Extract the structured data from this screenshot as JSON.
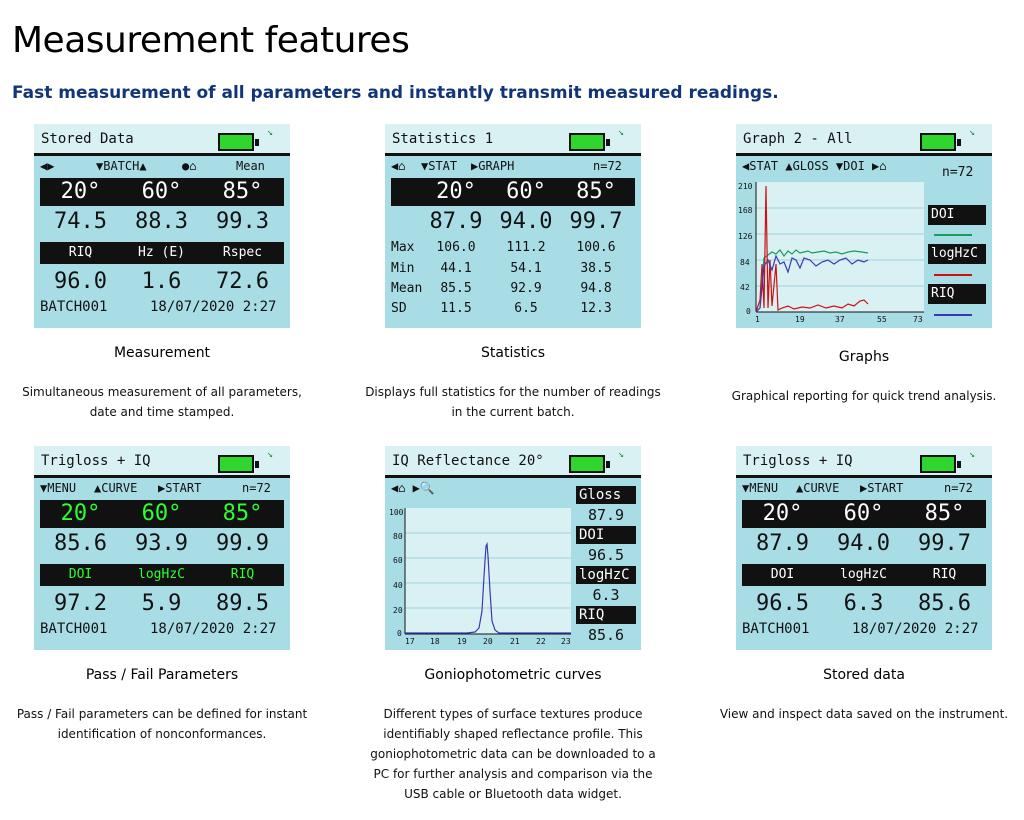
{
  "page": {
    "title": "Measurement features",
    "subtitle": "Fast measurement of all parameters and instantly transmit measured readings."
  },
  "icons": {
    "battery": "battery-icon",
    "signal": "signal-icon"
  },
  "colors": {
    "heading": "#12357a",
    "screen": "#a9dde6",
    "battery": "#2ed62e",
    "green": "#2eff2e"
  },
  "cards": [
    {
      "screen_title": "Stored Data",
      "nav": [
        "◀▶",
        "▼BATCH▲",
        "●⌂",
        "Mean"
      ],
      "angles": [
        "20°",
        "60°",
        "85°"
      ],
      "values": [
        "74.5",
        "88.3",
        "99.3"
      ],
      "labels": [
        "RIQ",
        "Hz (E)",
        "Rspec"
      ],
      "values2": [
        "96.0",
        "1.6",
        "72.6"
      ],
      "batch": "BATCH001",
      "datetime": "18/07/2020  2:27",
      "caption": "Measurement",
      "desc": "Simultaneous measurement of all parameters, date and time stamped."
    },
    {
      "screen_title": "Statistics 1",
      "nav": [
        "◀⌂",
        "▼STAT",
        "▶GRAPH",
        "n=72"
      ],
      "angles": [
        "20°",
        "60°",
        "85°"
      ],
      "values": [
        "87.9",
        "94.0",
        "99.7"
      ],
      "stats": [
        {
          "k": "Max",
          "v": [
            "106.0",
            "111.2",
            "100.6"
          ]
        },
        {
          "k": "Min",
          "v": [
            "44.1",
            "54.1",
            "38.5"
          ]
        },
        {
          "k": "Mean",
          "v": [
            "85.5",
            "92.9",
            "94.8"
          ]
        },
        {
          "k": "SD",
          "v": [
            "11.5",
            "6.5",
            "12.3"
          ]
        }
      ],
      "caption": "Statistics",
      "desc": "Displays full statistics for the number of readings in the current batch."
    },
    {
      "screen_title": "Graph 2 - All",
      "nav": "◀STAT ▲GLOSS ▼DOI  ▶⌂",
      "n": "n=72",
      "yticks": [
        "210",
        "168",
        "126",
        "84",
        "42",
        "0"
      ],
      "xticks": [
        "1",
        "19",
        "37",
        "55",
        "73"
      ],
      "legend": [
        "DOI",
        "logHzC",
        "RIQ"
      ],
      "caption": "Graphs",
      "desc": "Graphical reporting for quick trend analysis."
    },
    {
      "screen_title": "Trigloss + IQ",
      "nav": [
        "▼MENU",
        "▲CURVE",
        "▶START",
        "n=72"
      ],
      "angles": [
        "20°",
        "60°",
        "85°"
      ],
      "values": [
        "85.6",
        "93.9",
        "99.9"
      ],
      "labels": [
        "DOI",
        "logHzC",
        "RIQ"
      ],
      "values2": [
        "97.2",
        "5.9",
        "89.5"
      ],
      "batch": "BATCH001",
      "datetime": "18/07/2020  2:27",
      "caption": "Pass / Fail Parameters",
      "desc": "Pass / Fail parameters can be defined for instant identification of nonconformances."
    },
    {
      "screen_title": "IQ Reflectance 20°",
      "nav": "◀⌂   ▶🔍",
      "yticks": [
        "100",
        "80",
        "60",
        "40",
        "20",
        "0"
      ],
      "xticks": [
        "17",
        "18",
        "19",
        "20",
        "21",
        "22",
        "23"
      ],
      "side": [
        {
          "k": "Gloss",
          "v": "87.9"
        },
        {
          "k": "DOI",
          "v": "96.5"
        },
        {
          "k": "logHzC",
          "v": "6.3"
        },
        {
          "k": "RIQ",
          "v": "85.6"
        }
      ],
      "caption": "Goniophotometric curves",
      "desc": "Different types of surface textures produce identifiably shaped reflectance profile. This goniophotometric data can be downloaded to a PC for further analysis and comparison via the USB cable or Bluetooth data widget."
    },
    {
      "screen_title": "Trigloss + IQ",
      "nav": [
        "▼MENU",
        "▲CURVE",
        "▶START",
        "n=72"
      ],
      "angles": [
        "20°",
        "60°",
        "85°"
      ],
      "values": [
        "87.9",
        "94.0",
        "99.7"
      ],
      "labels": [
        "DOI",
        "logHzC",
        "RIQ"
      ],
      "values2": [
        "96.5",
        "6.3",
        "85.6"
      ],
      "batch": "BATCH001",
      "datetime": "18/07/2020  2:27",
      "caption": "Stored data",
      "desc": "View and inspect data saved on the instrument."
    }
  ]
}
